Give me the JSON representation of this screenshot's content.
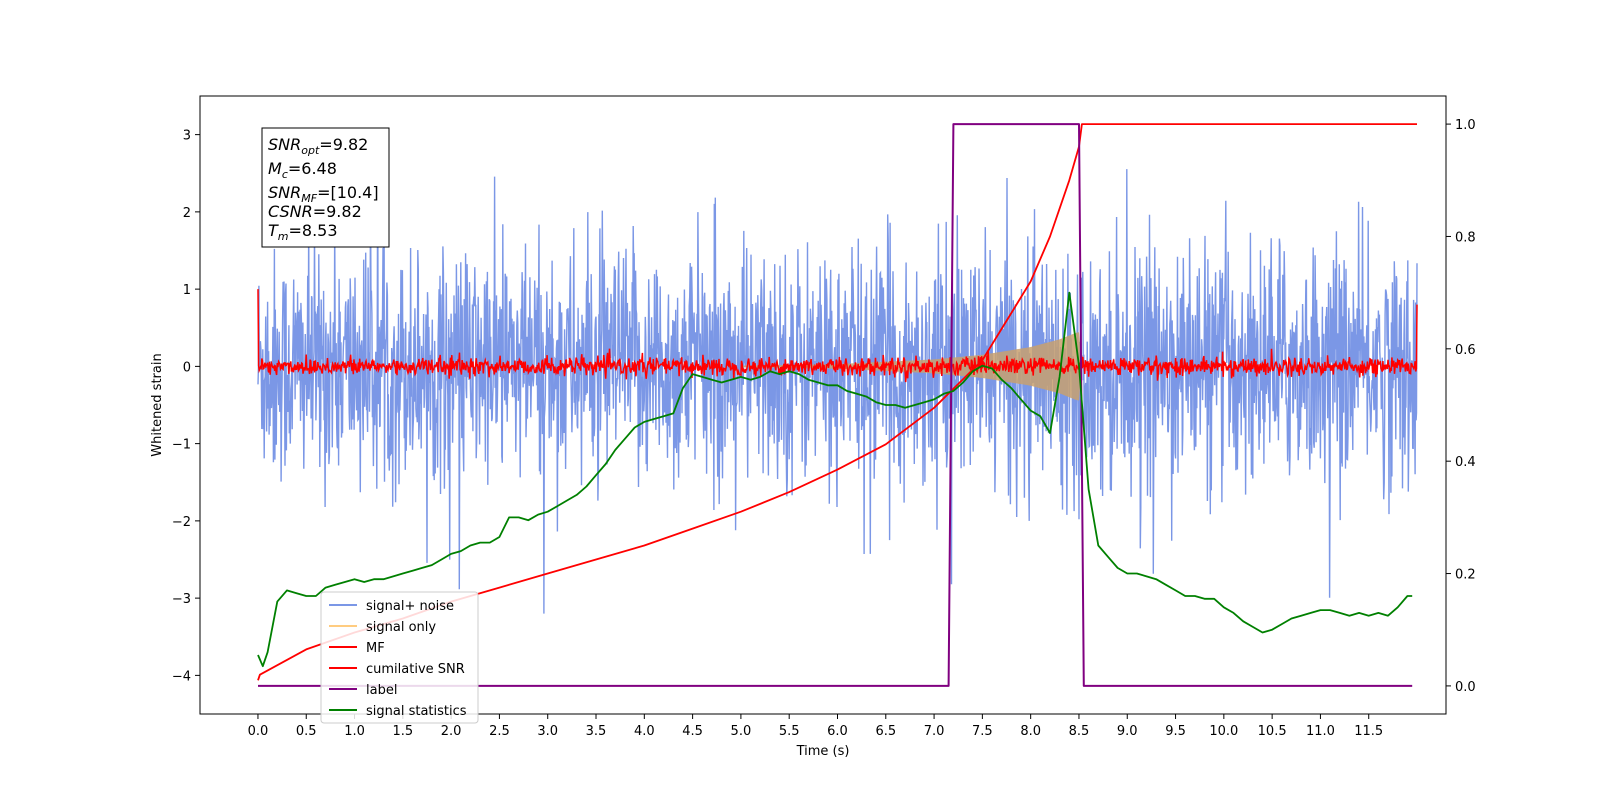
{
  "chart_data": {
    "type": "line",
    "xlabel": "Time (s)",
    "ylabel": "Whitened strain",
    "xlim": [
      -0.6,
      12.3
    ],
    "ylim": [
      -4.5,
      3.5
    ],
    "y2lim": [
      -0.05,
      1.05
    ],
    "x_ticks": [
      "0.0",
      "0.5",
      "1.0",
      "1.5",
      "2.0",
      "2.5",
      "3.0",
      "3.5",
      "4.0",
      "4.5",
      "5.0",
      "5.5",
      "6.0",
      "6.5",
      "7.0",
      "7.5",
      "8.0",
      "8.5",
      "9.0",
      "9.5",
      "10.0",
      "10.5",
      "11.0",
      "11.5"
    ],
    "y_ticks": [
      "3",
      "2",
      "1",
      "0",
      "−1",
      "−2",
      "−3",
      "−4"
    ],
    "y2_ticks": [
      "0.0",
      "0.2",
      "0.4",
      "0.6",
      "0.8",
      "1.0"
    ],
    "annotation": {
      "lines": [
        {
          "main": "SNR",
          "sub": "opt",
          "value": "=9.82"
        },
        {
          "main": "M",
          "sub": "c",
          "value": "=6.48"
        },
        {
          "main": "SNR",
          "sub": "MF",
          "value": "=[10.4]"
        },
        {
          "main": "CSNR",
          "sub": "",
          "value": "=9.82"
        },
        {
          "main": "T",
          "sub": "m",
          "value": "=8.53"
        }
      ]
    },
    "legend": {
      "placement": "lower-left",
      "entries": [
        {
          "label": "signal+ noise",
          "color": "#7b97e6"
        },
        {
          "label": "signal only",
          "color": "#ffcc80"
        },
        {
          "label": "MF",
          "color": "#ff0000"
        },
        {
          "label": "cumilative SNR",
          "color": "#ff0000"
        },
        {
          "label": "label",
          "color": "#800080"
        },
        {
          "label": "signal statistics",
          "color": "#008000"
        }
      ]
    },
    "series": [
      {
        "name": "signal+ noise",
        "axis": "left",
        "color": "#7b97e6",
        "x_range": [
          0,
          12
        ],
        "noise_std": 0.75,
        "max_abs": 3.2
      },
      {
        "name": "signal only",
        "axis": "left",
        "color": "#c8a06e",
        "envelope": {
          "x": [
            0,
            5.0,
            6.0,
            7.0,
            7.5,
            8.0,
            8.3,
            8.5,
            8.53
          ],
          "amp": [
            0,
            0.01,
            0.03,
            0.09,
            0.15,
            0.25,
            0.35,
            0.45,
            0
          ]
        }
      },
      {
        "name": "MF",
        "axis": "left",
        "color": "#ff0000",
        "x_range": [
          0,
          12
        ],
        "noise_std": 0.06
      },
      {
        "name": "cumilative SNR",
        "axis": "right",
        "color": "#ff0000",
        "x": [
          0.0,
          0.02,
          0.5,
          1.0,
          1.5,
          2.0,
          2.5,
          3.0,
          3.5,
          4.0,
          4.5,
          5.0,
          5.5,
          6.0,
          6.5,
          7.0,
          7.5,
          8.0,
          8.2,
          8.4,
          8.5,
          8.53,
          12.0
        ],
        "y": [
          0.01,
          0.02,
          0.065,
          0.095,
          0.12,
          0.15,
          0.175,
          0.2,
          0.225,
          0.25,
          0.28,
          0.31,
          0.345,
          0.385,
          0.43,
          0.495,
          0.58,
          0.72,
          0.8,
          0.9,
          0.96,
          1.0,
          1.0
        ]
      },
      {
        "name": "label",
        "axis": "right",
        "color": "#800080",
        "x": [
          0.0,
          7.15,
          7.2,
          8.5,
          8.55,
          11.95
        ],
        "y": [
          0.0,
          0.0,
          1.0,
          1.0,
          0.0,
          0.0
        ]
      },
      {
        "name": "signal statistics",
        "axis": "right",
        "color": "#008000",
        "x": [
          0.0,
          0.05,
          0.1,
          0.2,
          0.3,
          0.4,
          0.5,
          0.6,
          0.7,
          0.8,
          0.9,
          1.0,
          1.1,
          1.2,
          1.3,
          1.4,
          1.5,
          1.6,
          1.7,
          1.8,
          1.9,
          2.0,
          2.1,
          2.2,
          2.3,
          2.4,
          2.5,
          2.6,
          2.7,
          2.8,
          2.9,
          3.0,
          3.1,
          3.2,
          3.3,
          3.4,
          3.5,
          3.6,
          3.7,
          3.8,
          3.9,
          4.0,
          4.1,
          4.2,
          4.3,
          4.4,
          4.5,
          4.6,
          4.7,
          4.8,
          4.9,
          5.0,
          5.1,
          5.2,
          5.3,
          5.4,
          5.5,
          5.6,
          5.7,
          5.8,
          5.9,
          6.0,
          6.1,
          6.2,
          6.3,
          6.4,
          6.5,
          6.6,
          6.7,
          6.8,
          6.9,
          7.0,
          7.1,
          7.2,
          7.3,
          7.4,
          7.5,
          7.6,
          7.7,
          7.8,
          7.9,
          8.0,
          8.1,
          8.2,
          8.3,
          8.4,
          8.5,
          8.6,
          8.7,
          8.8,
          8.9,
          9.0,
          9.1,
          9.2,
          9.3,
          9.4,
          9.5,
          9.6,
          9.7,
          9.8,
          9.9,
          10.0,
          10.1,
          10.2,
          10.3,
          10.4,
          10.5,
          10.6,
          10.7,
          10.8,
          10.9,
          11.0,
          11.1,
          11.2,
          11.3,
          11.4,
          11.5,
          11.6,
          11.7,
          11.8,
          11.9,
          11.95
        ],
        "y": [
          0.055,
          0.035,
          0.06,
          0.15,
          0.17,
          0.165,
          0.16,
          0.16,
          0.175,
          0.18,
          0.185,
          0.19,
          0.185,
          0.19,
          0.19,
          0.195,
          0.2,
          0.205,
          0.21,
          0.215,
          0.225,
          0.235,
          0.24,
          0.25,
          0.255,
          0.255,
          0.265,
          0.3,
          0.3,
          0.295,
          0.305,
          0.31,
          0.32,
          0.33,
          0.34,
          0.355,
          0.375,
          0.395,
          0.42,
          0.44,
          0.46,
          0.47,
          0.475,
          0.48,
          0.485,
          0.53,
          0.555,
          0.55,
          0.545,
          0.54,
          0.545,
          0.55,
          0.545,
          0.55,
          0.56,
          0.555,
          0.56,
          0.555,
          0.545,
          0.54,
          0.535,
          0.535,
          0.525,
          0.52,
          0.515,
          0.505,
          0.5,
          0.5,
          0.495,
          0.5,
          0.505,
          0.51,
          0.52,
          0.525,
          0.54,
          0.56,
          0.57,
          0.565,
          0.545,
          0.53,
          0.51,
          0.49,
          0.48,
          0.45,
          0.55,
          0.7,
          0.57,
          0.35,
          0.25,
          0.23,
          0.21,
          0.2,
          0.2,
          0.195,
          0.19,
          0.18,
          0.17,
          0.16,
          0.16,
          0.155,
          0.155,
          0.14,
          0.13,
          0.115,
          0.105,
          0.095,
          0.1,
          0.11,
          0.12,
          0.125,
          0.13,
          0.135,
          0.135,
          0.13,
          0.125,
          0.13,
          0.125,
          0.13,
          0.125,
          0.14,
          0.16,
          0.16
        ]
      }
    ]
  }
}
